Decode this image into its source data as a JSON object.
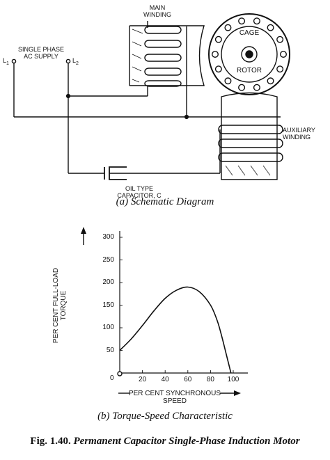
{
  "schematic": {
    "main_winding": "MAIN\nWINDING",
    "cage_label": "CAGE",
    "rotor_label": "ROTOR",
    "supply": "SINGLE PHASE\nAC SUPPLY",
    "terminal_1": "L",
    "terminal_1_sub": "1",
    "terminal_2": "L",
    "terminal_2_sub": "2",
    "auxiliary_winding": "AUXILIARY\nWINDING",
    "capacitor": "OIL TYPE\nCAPACITOR, C",
    "caption": "(a) Schematic Diagram"
  },
  "graph": {
    "y_label": "PER CENT FULL-LOAD\nTORQUE",
    "x_label": "PER CENT SYNCHRONOUS\nSPEED",
    "caption": "(b) Torque-Speed Characteristic",
    "origin_label": "0"
  },
  "chart_data": {
    "type": "line",
    "xlabel": "PER CENT SYNCHRONOUS SPEED",
    "ylabel": "PER CENT FULL-LOAD TORQUE",
    "x_ticks": [
      20,
      40,
      60,
      80,
      100
    ],
    "y_ticks": [
      50,
      100,
      150,
      200,
      250,
      300
    ],
    "xlim": [
      0,
      100
    ],
    "ylim": [
      0,
      300
    ],
    "series": [
      {
        "x": [
          0,
          10,
          20,
          30,
          40,
          50,
          60,
          70,
          80,
          86,
          90,
          94,
          98
        ],
        "y": [
          50,
          75,
          105,
          137,
          165,
          183,
          190,
          180,
          150,
          115,
          80,
          40,
          0
        ]
      }
    ]
  },
  "figure": {
    "number": "Fig. 1.40.",
    "title": "Permanent Capacitor Single-Phase Induction Motor"
  }
}
